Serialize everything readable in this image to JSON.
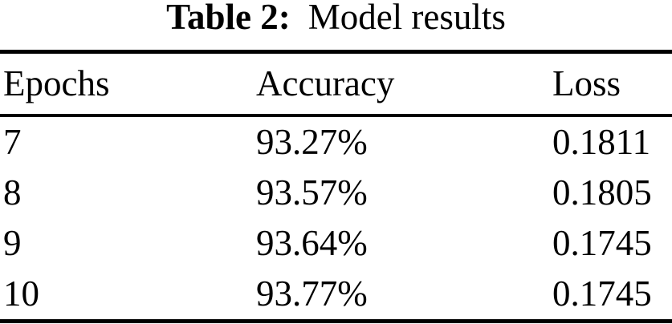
{
  "colors": {
    "text": "#000000",
    "background": "#ffffff",
    "rules": "#000000"
  },
  "chart_data": {
    "type": "table",
    "caption_label": "Table 2:",
    "caption_text": "Model results",
    "columns": [
      "Epochs",
      "Accuracy",
      "Loss"
    ],
    "rows": [
      [
        "7",
        "93.27%",
        "0.1811"
      ],
      [
        "8",
        "93.57%",
        "0.1805"
      ],
      [
        "9",
        "93.64%",
        "0.1745"
      ],
      [
        "10",
        "93.77%",
        "0.1745"
      ]
    ]
  }
}
